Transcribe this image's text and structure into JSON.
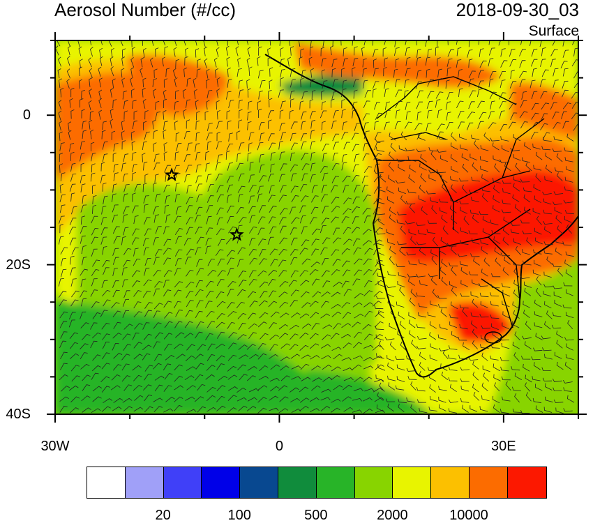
{
  "title_left": "Aerosol Number (#/cc)",
  "title_right": "2018-09-30_03",
  "subtitle": "Surface",
  "y_axis": {
    "labels": [
      "0",
      "20S",
      "40S"
    ],
    "lats": [
      0,
      -20,
      -40
    ]
  },
  "x_axis": {
    "labels": [
      "30W",
      "0",
      "30E"
    ],
    "lons": [
      -30,
      0,
      30
    ]
  },
  "map_extent": {
    "lon_min": -30,
    "lon_max": 40,
    "lat_min": -40,
    "lat_max": 10
  },
  "colorbar": {
    "colors": [
      "#ffffff",
      "#a0a0f8",
      "#4040f8",
      "#0000e8",
      "#084890",
      "#108c3c",
      "#28b428",
      "#88d400",
      "#e8f400",
      "#fcc000",
      "#fc6c00",
      "#fc1800"
    ],
    "labels": [
      "20",
      "100",
      "500",
      "2000",
      "10000"
    ]
  },
  "markers": [
    {
      "lon": -14.4,
      "lat": -8.0,
      "icon": "star-icon"
    },
    {
      "lon": -5.7,
      "lat": -16.0,
      "icon": "star-icon"
    }
  ]
}
